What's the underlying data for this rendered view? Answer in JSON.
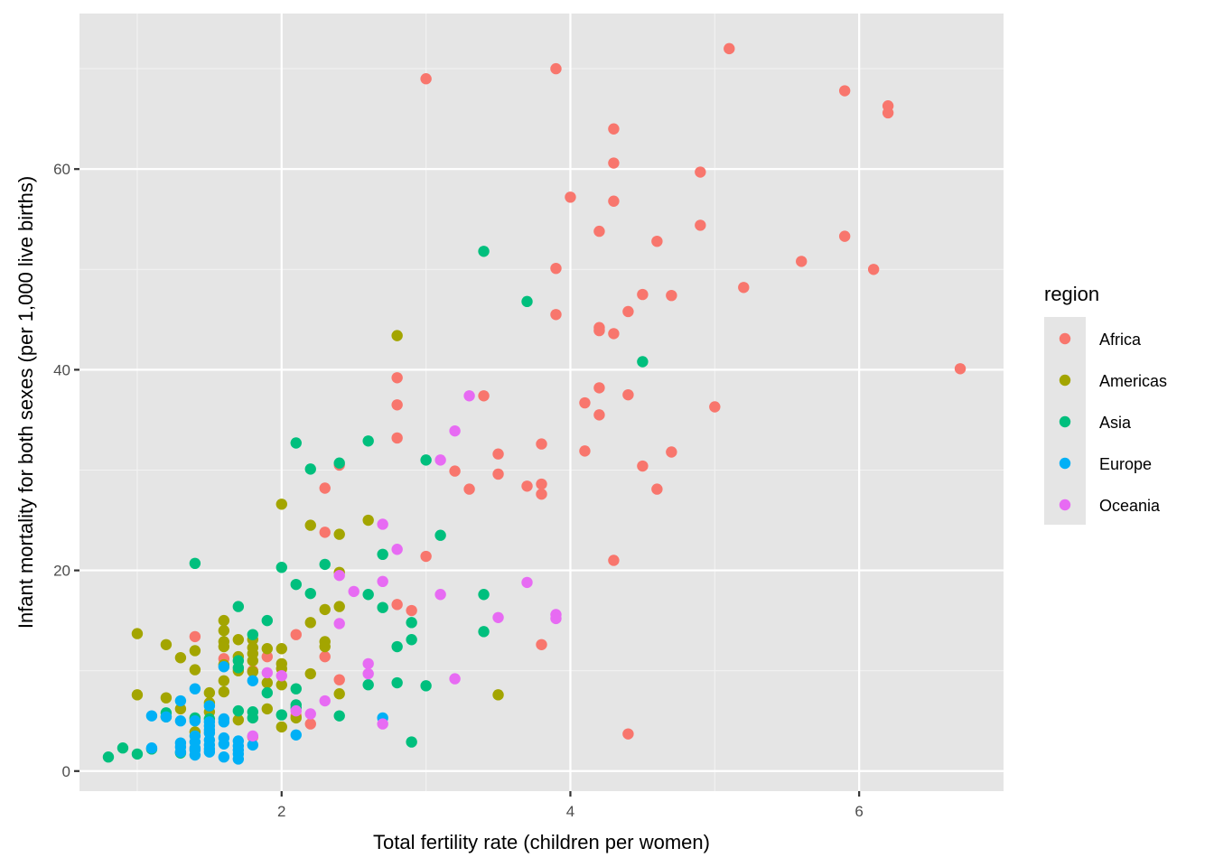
{
  "chart_data": {
    "type": "scatter",
    "title": "",
    "xlabel": "Total fertility rate (children per women)",
    "ylabel": "Infant mortality for both sexes (per 1,000 live births)",
    "xlim": [
      0.6,
      7.0
    ],
    "ylim": [
      -2.0,
      75.5
    ],
    "xticks": [
      2,
      4,
      6
    ],
    "xtick_labels": [
      "2",
      "4",
      "6"
    ],
    "yticks": [
      0,
      20,
      40,
      60
    ],
    "ytick_labels": [
      "0",
      "20",
      "40",
      "60"
    ],
    "x_minor": [
      1,
      3,
      5
    ],
    "y_minor": [
      10,
      30,
      50,
      70
    ],
    "grid": true,
    "legend": {
      "title": "region",
      "placement": "right"
    },
    "series": [
      {
        "name": "Africa",
        "color": "#F8766D",
        "points": [
          [
            3.0,
            69.0
          ],
          [
            3.9,
            70.0
          ],
          [
            5.1,
            72.0
          ],
          [
            5.9,
            67.8
          ],
          [
            6.2,
            66.3
          ],
          [
            6.2,
            65.6
          ],
          [
            4.3,
            64.0
          ],
          [
            4.3,
            60.6
          ],
          [
            4.9,
            59.7
          ],
          [
            4.0,
            57.2
          ],
          [
            4.3,
            56.8
          ],
          [
            4.2,
            53.8
          ],
          [
            4.9,
            54.4
          ],
          [
            4.6,
            52.8
          ],
          [
            5.9,
            53.3
          ],
          [
            5.6,
            50.8
          ],
          [
            6.1,
            50.0
          ],
          [
            3.9,
            50.1
          ],
          [
            5.2,
            48.2
          ],
          [
            4.5,
            47.5
          ],
          [
            4.7,
            47.4
          ],
          [
            4.4,
            45.8
          ],
          [
            3.9,
            45.5
          ],
          [
            4.2,
            44.2
          ],
          [
            4.2,
            43.9
          ],
          [
            4.3,
            43.6
          ],
          [
            6.7,
            40.1
          ],
          [
            2.8,
            39.2
          ],
          [
            4.2,
            38.2
          ],
          [
            4.4,
            37.5
          ],
          [
            3.4,
            37.4
          ],
          [
            4.1,
            36.7
          ],
          [
            2.8,
            36.5
          ],
          [
            5.0,
            36.3
          ],
          [
            4.2,
            35.5
          ],
          [
            2.8,
            33.2
          ],
          [
            3.8,
            32.6
          ],
          [
            4.1,
            31.9
          ],
          [
            4.7,
            31.8
          ],
          [
            3.5,
            31.6
          ],
          [
            2.4,
            30.5
          ],
          [
            4.5,
            30.4
          ],
          [
            3.2,
            29.9
          ],
          [
            3.5,
            29.6
          ],
          [
            3.8,
            28.6
          ],
          [
            3.7,
            28.4
          ],
          [
            2.3,
            28.2
          ],
          [
            3.3,
            28.1
          ],
          [
            4.6,
            28.1
          ],
          [
            3.8,
            27.6
          ],
          [
            2.3,
            23.8
          ],
          [
            3.0,
            21.4
          ],
          [
            4.3,
            21.0
          ],
          [
            2.8,
            16.6
          ],
          [
            2.9,
            16.0
          ],
          [
            2.1,
            13.6
          ],
          [
            1.4,
            13.4
          ],
          [
            3.8,
            12.6
          ],
          [
            1.9,
            11.4
          ],
          [
            2.3,
            11.4
          ],
          [
            1.6,
            11.2
          ],
          [
            1.8,
            10.0
          ],
          [
            2.4,
            9.1
          ],
          [
            2.2,
            4.7
          ],
          [
            4.4,
            3.7
          ],
          [
            1.8,
            3.4
          ],
          [
            2.1,
            5.5
          ]
        ]
      },
      {
        "name": "Americas",
        "color": "#A3A500",
        "points": [
          [
            2.8,
            43.4
          ],
          [
            2.0,
            26.6
          ],
          [
            2.6,
            25.0
          ],
          [
            2.2,
            24.5
          ],
          [
            2.4,
            23.6
          ],
          [
            2.4,
            19.8
          ],
          [
            2.4,
            16.4
          ],
          [
            2.3,
            16.1
          ],
          [
            1.6,
            15.0
          ],
          [
            2.2,
            14.8
          ],
          [
            1.6,
            14.0
          ],
          [
            1.0,
            13.7
          ],
          [
            1.7,
            13.1
          ],
          [
            1.8,
            13.1
          ],
          [
            1.6,
            12.9
          ],
          [
            2.3,
            12.9
          ],
          [
            1.2,
            12.6
          ],
          [
            1.6,
            12.4
          ],
          [
            1.8,
            12.3
          ],
          [
            1.9,
            12.2
          ],
          [
            2.0,
            12.2
          ],
          [
            2.3,
            12.4
          ],
          [
            1.4,
            12.0
          ],
          [
            1.8,
            11.7
          ],
          [
            1.3,
            11.3
          ],
          [
            1.7,
            11.4
          ],
          [
            1.8,
            11.0
          ],
          [
            2.0,
            10.7
          ],
          [
            2.0,
            10.2
          ],
          [
            1.6,
            10.6
          ],
          [
            1.4,
            10.1
          ],
          [
            1.8,
            9.9
          ],
          [
            1.7,
            10.0
          ],
          [
            2.2,
            9.7
          ],
          [
            1.9,
            8.8
          ],
          [
            2.0,
            8.6
          ],
          [
            1.6,
            9.0
          ],
          [
            1.5,
            7.8
          ],
          [
            1.6,
            7.9
          ],
          [
            1.0,
            7.6
          ],
          [
            1.2,
            7.3
          ],
          [
            1.5,
            6.8
          ],
          [
            3.5,
            7.6
          ],
          [
            2.4,
            7.7
          ],
          [
            1.9,
            6.2
          ],
          [
            1.3,
            6.2
          ],
          [
            1.5,
            5.9
          ],
          [
            1.4,
            5.2
          ],
          [
            1.7,
            5.1
          ],
          [
            2.0,
            4.4
          ],
          [
            1.4,
            3.9
          ],
          [
            2.1,
            5.3
          ]
        ]
      },
      {
        "name": "Asia",
        "color": "#00BF7D",
        "points": [
          [
            3.4,
            51.8
          ],
          [
            3.7,
            46.8
          ],
          [
            4.5,
            40.8
          ],
          [
            2.1,
            32.7
          ],
          [
            2.6,
            32.9
          ],
          [
            3.0,
            31.0
          ],
          [
            2.4,
            30.7
          ],
          [
            2.2,
            30.1
          ],
          [
            3.1,
            23.5
          ],
          [
            2.7,
            21.6
          ],
          [
            1.4,
            20.7
          ],
          [
            2.3,
            20.6
          ],
          [
            2.0,
            20.3
          ],
          [
            2.1,
            18.6
          ],
          [
            2.2,
            17.7
          ],
          [
            2.6,
            17.6
          ],
          [
            3.4,
            17.6
          ],
          [
            1.7,
            16.4
          ],
          [
            2.7,
            16.3
          ],
          [
            1.9,
            15.0
          ],
          [
            2.9,
            14.8
          ],
          [
            3.4,
            13.9
          ],
          [
            1.8,
            13.6
          ],
          [
            2.9,
            13.1
          ],
          [
            2.8,
            12.4
          ],
          [
            1.7,
            11.0
          ],
          [
            1.7,
            10.3
          ],
          [
            2.6,
            8.6
          ],
          [
            2.8,
            8.8
          ],
          [
            3.0,
            8.5
          ],
          [
            1.9,
            7.8
          ],
          [
            2.1,
            8.2
          ],
          [
            2.1,
            6.6
          ],
          [
            2.1,
            6.3
          ],
          [
            1.7,
            6.0
          ],
          [
            1.8,
            5.9
          ],
          [
            2.0,
            5.6
          ],
          [
            2.4,
            5.5
          ],
          [
            1.8,
            5.3
          ],
          [
            1.5,
            5.2
          ],
          [
            1.2,
            5.8
          ],
          [
            1.2,
            5.4
          ],
          [
            1.4,
            5.3
          ],
          [
            2.9,
            2.9
          ],
          [
            1.3,
            1.8
          ],
          [
            0.9,
            2.3
          ],
          [
            1.0,
            1.7
          ],
          [
            0.8,
            1.4
          ],
          [
            1.1,
            2.2
          ]
        ]
      },
      {
        "name": "Europe",
        "color": "#00B0F6",
        "points": [
          [
            1.6,
            10.4
          ],
          [
            1.8,
            9.0
          ],
          [
            1.4,
            8.2
          ],
          [
            2.1,
            3.6
          ],
          [
            1.3,
            7.0
          ],
          [
            1.5,
            6.5
          ],
          [
            1.1,
            5.5
          ],
          [
            1.2,
            5.4
          ],
          [
            1.4,
            5.0
          ],
          [
            1.3,
            5.0
          ],
          [
            1.5,
            4.9
          ],
          [
            1.6,
            4.9
          ],
          [
            1.6,
            5.2
          ],
          [
            1.5,
            4.5
          ],
          [
            1.5,
            4.1
          ],
          [
            1.5,
            3.8
          ],
          [
            1.4,
            3.5
          ],
          [
            1.6,
            3.3
          ],
          [
            1.5,
            3.1
          ],
          [
            1.7,
            3.0
          ],
          [
            1.4,
            2.9
          ],
          [
            1.3,
            2.8
          ],
          [
            1.8,
            2.6
          ],
          [
            1.5,
            2.6
          ],
          [
            1.7,
            2.5
          ],
          [
            1.3,
            2.4
          ],
          [
            1.4,
            2.3
          ],
          [
            1.1,
            2.3
          ],
          [
            1.6,
            2.7
          ],
          [
            1.5,
            2.2
          ],
          [
            1.7,
            2.1
          ],
          [
            1.4,
            2.1
          ],
          [
            1.5,
            1.9
          ],
          [
            1.3,
            1.9
          ],
          [
            1.7,
            1.7
          ],
          [
            1.6,
            1.4
          ],
          [
            1.4,
            1.6
          ],
          [
            1.7,
            1.2
          ],
          [
            2.7,
            5.3
          ]
        ]
      },
      {
        "name": "Oceania",
        "color": "#E76BF3",
        "points": [
          [
            3.3,
            37.4
          ],
          [
            3.2,
            33.9
          ],
          [
            3.1,
            31.0
          ],
          [
            2.7,
            24.6
          ],
          [
            2.8,
            22.1
          ],
          [
            2.4,
            19.5
          ],
          [
            2.7,
            18.9
          ],
          [
            3.7,
            18.8
          ],
          [
            2.5,
            17.9
          ],
          [
            3.1,
            17.6
          ],
          [
            3.9,
            15.6
          ],
          [
            3.9,
            15.2
          ],
          [
            3.5,
            15.3
          ],
          [
            2.4,
            14.7
          ],
          [
            2.6,
            10.7
          ],
          [
            2.6,
            9.7
          ],
          [
            1.9,
            9.8
          ],
          [
            2.0,
            9.5
          ],
          [
            3.2,
            9.2
          ],
          [
            2.3,
            7.0
          ],
          [
            2.1,
            6.0
          ],
          [
            2.2,
            5.7
          ],
          [
            2.7,
            4.7
          ],
          [
            1.8,
            3.5
          ]
        ]
      }
    ]
  }
}
